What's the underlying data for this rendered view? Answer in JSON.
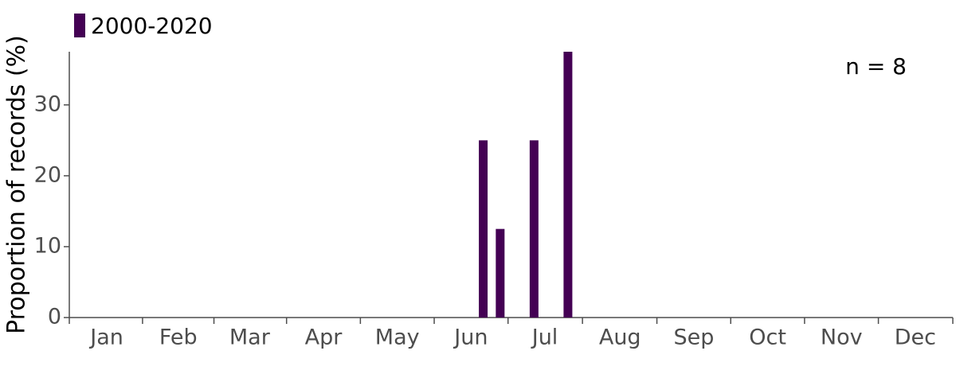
{
  "chart_data": {
    "type": "bar",
    "y_label": "Proportion of records (%)",
    "annotation": "n = 8",
    "series": [
      {
        "name": "2000-2020",
        "color": "#440154",
        "x": [
          171,
          178,
          192,
          206
        ],
        "values": [
          25,
          12.5,
          25,
          37.5
        ]
      }
    ],
    "xlim": [
      0,
      365
    ],
    "xticks": [
      {
        "value": 15.5,
        "label": "Jan"
      },
      {
        "value": 45,
        "label": "Feb"
      },
      {
        "value": 74.5,
        "label": "Mar"
      },
      {
        "value": 105,
        "label": "Apr"
      },
      {
        "value": 135.5,
        "label": "May"
      },
      {
        "value": 166,
        "label": "Jun"
      },
      {
        "value": 196.5,
        "label": "Jul"
      },
      {
        "value": 227.5,
        "label": "Aug"
      },
      {
        "value": 258,
        "label": "Sep"
      },
      {
        "value": 288.5,
        "label": "Oct"
      },
      {
        "value": 319,
        "label": "Nov"
      },
      {
        "value": 349.5,
        "label": "Dec"
      }
    ],
    "ylim": [
      0,
      37.5
    ],
    "yticks": [
      0,
      10,
      20,
      30
    ],
    "legend": "top-left"
  }
}
